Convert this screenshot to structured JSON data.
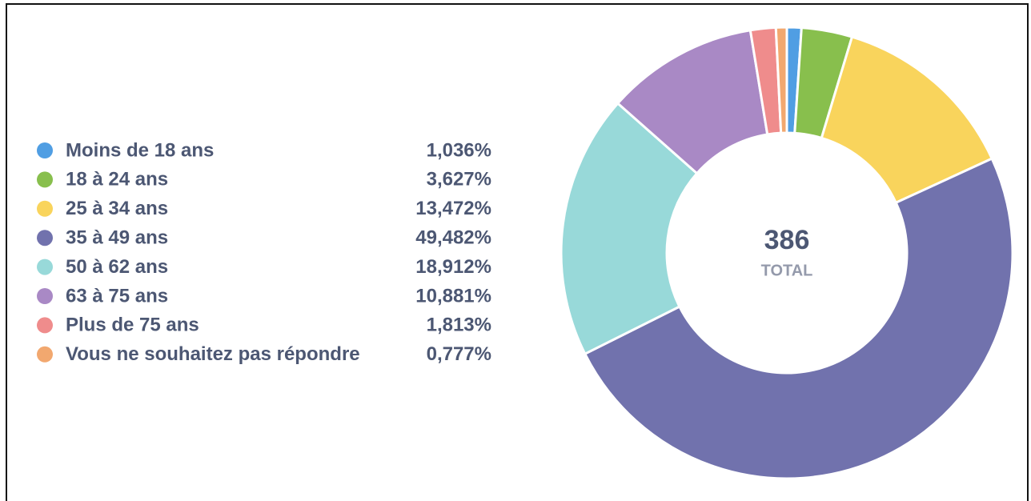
{
  "chart_data": {
    "type": "donut",
    "categories": [
      "Moins de 18 ans",
      "18 à 24 ans",
      "25 à 34 ans",
      "35 à 49 ans",
      "50 à 62 ans",
      "63 à 75 ans",
      "Plus de 75 ans",
      "Vous ne souhaitez pas répondre"
    ],
    "values": [
      1.036,
      3.627,
      13.472,
      49.482,
      18.912,
      10.881,
      1.813,
      0.777
    ],
    "value_labels": [
      "1,036%",
      "3,627%",
      "13,472%",
      "49,482%",
      "18,912%",
      "10,881%",
      "1,813%",
      "0,777%"
    ],
    "colors": [
      "#509ee3",
      "#88bf4d",
      "#f9d45c",
      "#7172ad",
      "#98d9d9",
      "#a989c5",
      "#ef8c8c",
      "#f2a86f"
    ],
    "total": 386,
    "total_label": "TOTAL"
  }
}
